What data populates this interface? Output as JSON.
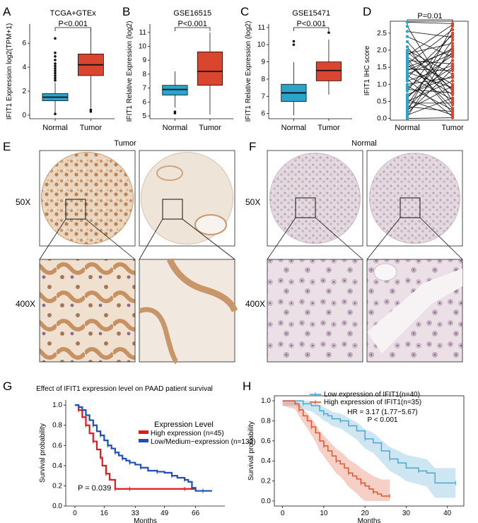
{
  "panel_labels": {
    "A": "A",
    "B": "B",
    "C": "C",
    "D": "D",
    "E": "E",
    "F": "F",
    "G": "G",
    "H": "H"
  },
  "tissue": {
    "tumor_title": "Tumor",
    "normal_title": "Normal",
    "mag_low": "50X",
    "mag_high": "400X",
    "tumor_stain_color": "#c79a6e",
    "normal_stain_color": "#b9a6b4"
  },
  "colors": {
    "normal_box": "#2aa5c9",
    "tumor_box": "#d9452f",
    "high_line": "#e31a1c",
    "low_line": "#1f4fb3",
    "h_blue": "#4fa6cc",
    "h_red": "#e0542f"
  },
  "chart_data": [
    {
      "id": "A",
      "type": "box",
      "title": "TCGA+GTEx",
      "ylabel": "IFIT1 Expression log2(TPM+1)",
      "xlabel": "",
      "categories": [
        "Normal",
        "Tumor"
      ],
      "ylim": [
        -0.3,
        7.6
      ],
      "yticks": [
        0,
        2,
        4,
        6
      ],
      "annotation": "P<0.001",
      "boxes": [
        {
          "name": "Normal",
          "min": 0.0,
          "q1": 1.2,
          "median": 1.5,
          "q3": 1.8,
          "max": 2.7,
          "outliers": [
            2.9,
            3.1,
            3.3,
            3.5,
            3.7,
            3.9,
            4.1,
            4.3,
            4.6,
            4.9,
            5.2,
            6.4,
            0.1
          ]
        },
        {
          "name": "Tumor",
          "min": 0.6,
          "q1": 3.3,
          "median": 4.2,
          "q3": 5.1,
          "max": 7.2,
          "outliers": [
            0.3,
            0.45
          ]
        }
      ]
    },
    {
      "id": "B",
      "type": "box",
      "title": "GSE16515",
      "ylabel": "IFIT1 Relative Expression (log2)",
      "xlabel": "",
      "categories": [
        "Normal",
        "Tumor"
      ],
      "ylim": [
        4.8,
        11.6
      ],
      "yticks": [
        5,
        6,
        7,
        8,
        9,
        10,
        11
      ],
      "annotation": "P<0.001",
      "boxes": [
        {
          "name": "Normal",
          "min": 5.6,
          "q1": 6.5,
          "median": 6.9,
          "q3": 7.2,
          "max": 8.2,
          "outliers": [
            5.2,
            5.3
          ]
        },
        {
          "name": "Tumor",
          "min": 5.1,
          "q1": 7.2,
          "median": 8.2,
          "q3": 9.6,
          "max": 11.0,
          "outliers": []
        }
      ]
    },
    {
      "id": "C",
      "type": "box",
      "title": "GSE15471",
      "ylabel": "IFIT1 Relative Expression (log2)",
      "xlabel": "",
      "categories": [
        "Normal",
        "Tumor"
      ],
      "ylim": [
        5.7,
        11.2
      ],
      "yticks": [
        6,
        7,
        8,
        9,
        10,
        11
      ],
      "annotation": "P<0.001",
      "boxes": [
        {
          "name": "Normal",
          "min": 5.9,
          "q1": 6.7,
          "median": 7.2,
          "q3": 7.7,
          "max": 9.0,
          "outliers": [
            10.0,
            10.2
          ]
        },
        {
          "name": "Tumor",
          "min": 7.1,
          "q1": 7.9,
          "median": 8.5,
          "q3": 9.0,
          "max": 10.3,
          "outliers": [
            10.7
          ]
        }
      ]
    },
    {
      "id": "D",
      "type": "paired",
      "title": "",
      "ylabel": "IFIT1 IHC score",
      "xlabel": "",
      "categories": [
        "Normal",
        "Tumor"
      ],
      "ylim": [
        -0.05,
        2.85
      ],
      "yticks": [
        0.0,
        0.5,
        1.0,
        1.5,
        2.0,
        2.5
      ],
      "annotation": "P=0.01",
      "pairs": [
        [
          2.82,
          2.78
        ],
        [
          1.85,
          2.75
        ],
        [
          0.2,
          2.7
        ],
        [
          1.6,
          2.6
        ],
        [
          0.8,
          2.5
        ],
        [
          1.2,
          2.45
        ],
        [
          2.55,
          2.38
        ],
        [
          0.4,
          2.3
        ],
        [
          1.9,
          2.2
        ],
        [
          0.05,
          2.12
        ],
        [
          1.5,
          2.0
        ],
        [
          0.6,
          1.95
        ],
        [
          1.3,
          1.9
        ],
        [
          0.9,
          1.85
        ],
        [
          2.4,
          1.8
        ],
        [
          0.3,
          1.7
        ],
        [
          1.7,
          1.6
        ],
        [
          1.1,
          1.55
        ],
        [
          0.15,
          1.45
        ],
        [
          1.45,
          1.4
        ],
        [
          2.0,
          1.3
        ],
        [
          0.7,
          1.25
        ],
        [
          1.0,
          1.2
        ],
        [
          0.5,
          1.1
        ],
        [
          1.8,
          1.0
        ],
        [
          0.25,
          0.95
        ],
        [
          1.35,
          0.9
        ],
        [
          2.25,
          0.8
        ],
        [
          0.85,
          0.75
        ],
        [
          1.55,
          0.7
        ],
        [
          0.1,
          0.6
        ],
        [
          1.25,
          0.55
        ],
        [
          0.45,
          0.45
        ],
        [
          2.1,
          0.4
        ],
        [
          1.65,
          0.3
        ],
        [
          0.95,
          0.25
        ],
        [
          0.35,
          0.2
        ],
        [
          1.75,
          0.15
        ],
        [
          0.55,
          0.1
        ],
        [
          1.15,
          0.05
        ],
        [
          0.0,
          0.02
        ],
        [
          2.7,
          0.5
        ],
        [
          1.4,
          2.05
        ],
        [
          0.65,
          1.5
        ],
        [
          1.95,
          0.85
        ]
      ]
    },
    {
      "id": "G",
      "type": "line",
      "title": "Effect of IFIT1 expression level on PAAD patient survival",
      "xlabel": "Months",
      "ylabel": "Survival probability",
      "xlim": [
        -5,
        82
      ],
      "ylim": [
        0,
        1.05
      ],
      "xticks": [
        0,
        16,
        33,
        49,
        66
      ],
      "yticks": [
        0.0,
        0.2,
        0.4,
        0.6,
        0.8,
        1.0
      ],
      "legend_title": "Expression Level",
      "legend_position": "top-right",
      "annotation": "P = 0.039",
      "series": [
        {
          "name": "High expression (n=45)",
          "color": "#e31a1c",
          "x": [
            0,
            2,
            4,
            6,
            8,
            10,
            12,
            14,
            15,
            17,
            19,
            22,
            24,
            30,
            45,
            60,
            66
          ],
          "y": [
            1.0,
            0.95,
            0.88,
            0.8,
            0.72,
            0.64,
            0.56,
            0.48,
            0.4,
            0.32,
            0.26,
            0.17,
            0.17,
            0.17,
            0.17,
            0.17,
            0.17
          ]
        },
        {
          "name": "Low/Medium−expression (n=132)",
          "color": "#1f4fb3",
          "x": [
            0,
            2,
            4,
            6,
            8,
            10,
            12,
            14,
            16,
            18,
            20,
            22,
            24,
            26,
            28,
            30,
            33,
            36,
            40,
            45,
            49,
            53,
            56,
            60,
            62,
            64,
            66,
            70,
            75
          ],
          "y": [
            1.0,
            0.98,
            0.95,
            0.9,
            0.85,
            0.8,
            0.74,
            0.7,
            0.65,
            0.6,
            0.57,
            0.53,
            0.5,
            0.47,
            0.45,
            0.43,
            0.41,
            0.38,
            0.35,
            0.34,
            0.33,
            0.3,
            0.28,
            0.26,
            0.24,
            0.18,
            0.15,
            0.15,
            0.15
          ]
        }
      ]
    },
    {
      "id": "H",
      "type": "line",
      "title": "",
      "xlabel": "Months",
      "ylabel": "Survival probability",
      "xlim": [
        -2,
        44
      ],
      "ylim": [
        -0.05,
        1.05
      ],
      "xticks": [
        0,
        10,
        20,
        30,
        40
      ],
      "yticks": [
        0.0,
        0.2,
        0.4,
        0.6,
        0.8,
        1.0
      ],
      "legend_position": "top-right",
      "annotations": [
        "HR = 3.17 (1.77−5.67)",
        "P < 0.001"
      ],
      "series": [
        {
          "name": "Low expression of IFIT1(n=40)",
          "color": "#4fa6cc",
          "x": [
            0,
            3,
            5,
            7,
            9,
            10,
            11,
            12,
            14,
            16,
            18,
            20,
            22,
            24,
            26,
            28,
            30,
            33,
            35,
            37,
            42
          ],
          "y": [
            1.0,
            1.0,
            0.97,
            0.95,
            0.9,
            0.87,
            0.85,
            0.82,
            0.8,
            0.75,
            0.7,
            0.62,
            0.58,
            0.5,
            0.42,
            0.38,
            0.33,
            0.3,
            0.28,
            0.18,
            0.18
          ]
        },
        {
          "name": "High expression of IFIT1(n=35)",
          "color": "#e0542f",
          "x": [
            0,
            3,
            4,
            5,
            6,
            7,
            8,
            9,
            10,
            11,
            12,
            13,
            14,
            15,
            16,
            17,
            18,
            19,
            20,
            21,
            22,
            23,
            24,
            26
          ],
          "y": [
            1.0,
            0.97,
            0.91,
            0.85,
            0.8,
            0.74,
            0.68,
            0.6,
            0.55,
            0.5,
            0.45,
            0.4,
            0.37,
            0.33,
            0.28,
            0.25,
            0.22,
            0.18,
            0.15,
            0.12,
            0.09,
            0.07,
            0.05,
            0.05
          ]
        }
      ]
    }
  ]
}
